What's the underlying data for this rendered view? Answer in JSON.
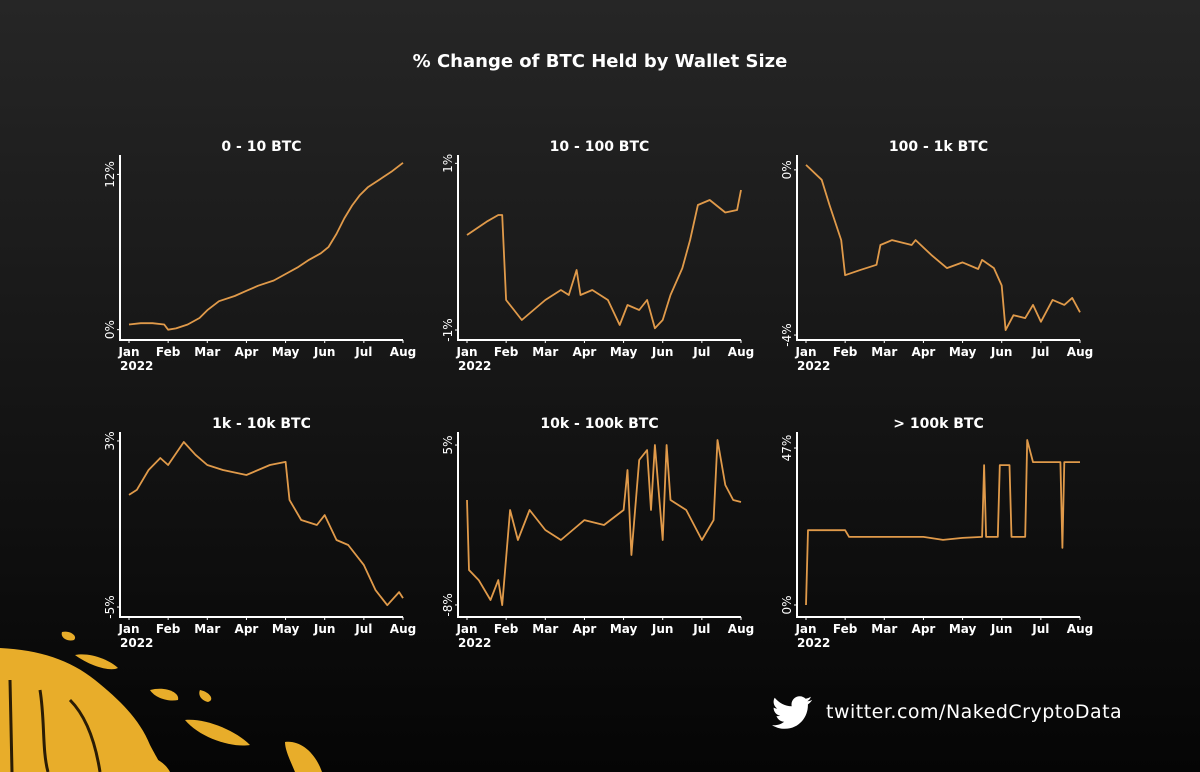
{
  "title": "% Change of BTC Held by Wallet Size",
  "footer": "twitter.com/NakedCryptoData",
  "chart_data": [
    {
      "type": "line",
      "title": "0 - 10 BTC",
      "color": "#e09a4a",
      "x": [
        0,
        0.3,
        0.6,
        0.9,
        1.0,
        1.2,
        1.5,
        1.8,
        2.0,
        2.3,
        2.7,
        3.0,
        3.3,
        3.7,
        4.0,
        4.3,
        4.6,
        4.9,
        5.1,
        5.3,
        5.5,
        5.7,
        5.9,
        6.1,
        6.4,
        6.7,
        7.0
      ],
      "values": [
        0.4,
        0.5,
        0.5,
        0.4,
        0.0,
        0.1,
        0.4,
        0.9,
        1.5,
        2.2,
        2.6,
        3.0,
        3.4,
        3.8,
        4.3,
        4.8,
        5.4,
        5.9,
        6.4,
        7.4,
        8.6,
        9.6,
        10.4,
        11.0,
        11.6,
        12.2,
        12.9
      ],
      "xlim": [
        -0.23,
        7
      ],
      "xticks": [
        {
          "value": 0,
          "label": "Jan"
        },
        {
          "value": 1,
          "label": "Feb"
        },
        {
          "value": 2,
          "label": "Mar"
        },
        {
          "value": 3,
          "label": "Apr"
        },
        {
          "value": 4,
          "label": "May"
        },
        {
          "value": 5,
          "label": "Jun"
        },
        {
          "value": 6,
          "label": "Jul"
        },
        {
          "value": 7,
          "label": "Aug"
        }
      ],
      "x_year": "2022",
      "ylim": [
        -0.8,
        13.5
      ],
      "yticks": [
        {
          "value": 0,
          "label": "0%"
        },
        {
          "value": 12,
          "label": "12%"
        }
      ]
    },
    {
      "type": "line",
      "title": "10 - 100 BTC",
      "color": "#e09a4a",
      "x": [
        0,
        0.5,
        0.8,
        0.9,
        1.0,
        1.2,
        1.4,
        2.0,
        2.4,
        2.6,
        2.8,
        2.9,
        3.2,
        3.6,
        3.9,
        4.1,
        4.4,
        4.6,
        4.8,
        5.0,
        5.2,
        5.5,
        5.7,
        5.9,
        6.2,
        6.6,
        6.9,
        7.0
      ],
      "values": [
        0.14,
        0.3,
        0.38,
        0.38,
        -0.64,
        -0.76,
        -0.88,
        -0.64,
        -0.52,
        -0.58,
        -0.28,
        -0.58,
        -0.52,
        -0.64,
        -0.94,
        -0.7,
        -0.76,
        -0.64,
        -0.98,
        -0.88,
        -0.58,
        -0.26,
        0.08,
        0.5,
        0.56,
        0.41,
        0.44,
        0.68
      ],
      "xlim": [
        -0.23,
        7
      ],
      "xticks": [
        {
          "value": 0,
          "label": "Jan"
        },
        {
          "value": 1,
          "label": "Feb"
        },
        {
          "value": 2,
          "label": "Mar"
        },
        {
          "value": 3,
          "label": "Apr"
        },
        {
          "value": 4,
          "label": "May"
        },
        {
          "value": 5,
          "label": "Jun"
        },
        {
          "value": 6,
          "label": "Jul"
        },
        {
          "value": 7,
          "label": "Aug"
        }
      ],
      "x_year": "2022",
      "ylim": [
        -1.12,
        1.1
      ],
      "yticks": [
        {
          "value": -1,
          "label": "-1%"
        },
        {
          "value": 1,
          "label": "1%"
        }
      ]
    },
    {
      "type": "line",
      "title": "100 - 1k BTC",
      "color": "#e09a4a",
      "x": [
        0,
        0.4,
        0.6,
        0.9,
        1.0,
        1.4,
        1.8,
        1.9,
        2.2,
        2.7,
        2.8,
        3.2,
        3.6,
        4.0,
        4.4,
        4.5,
        4.8,
        5.0,
        5.1,
        5.3,
        5.6,
        5.8,
        6.0,
        6.3,
        6.6,
        6.8,
        7.0
      ],
      "values": [
        0.12,
        -0.24,
        -0.85,
        -1.7,
        -2.55,
        -2.42,
        -2.3,
        -1.82,
        -1.7,
        -1.82,
        -1.7,
        -2.06,
        -2.38,
        -2.24,
        -2.4,
        -2.18,
        -2.38,
        -2.8,
        -3.88,
        -3.52,
        -3.59,
        -3.27,
        -3.68,
        -3.15,
        -3.27,
        -3.1,
        -3.45
      ],
      "xlim": [
        -0.23,
        7
      ],
      "xticks": [
        {
          "value": 0,
          "label": "Jan"
        },
        {
          "value": 1,
          "label": "Feb"
        },
        {
          "value": 2,
          "label": "Mar"
        },
        {
          "value": 3,
          "label": "Apr"
        },
        {
          "value": 4,
          "label": "May"
        },
        {
          "value": 5,
          "label": "Jun"
        },
        {
          "value": 6,
          "label": "Jul"
        },
        {
          "value": 7,
          "label": "Aug"
        }
      ],
      "x_year": "2022",
      "ylim": [
        -4.12,
        0.36
      ],
      "yticks": [
        {
          "value": -4,
          "label": "-4%"
        },
        {
          "value": 0,
          "label": "0%"
        }
      ]
    },
    {
      "type": "line",
      "title": "1k - 10k BTC",
      "color": "#e09a4a",
      "x": [
        0,
        0.2,
        0.5,
        0.8,
        1.0,
        1.4,
        1.7,
        2.0,
        2.4,
        3.0,
        3.6,
        4.0,
        4.1,
        4.4,
        4.8,
        5.0,
        5.3,
        5.6,
        6.0,
        6.3,
        6.6,
        6.9,
        7.0
      ],
      "values": [
        0.4,
        0.64,
        1.6,
        2.18,
        1.84,
        2.95,
        2.33,
        1.84,
        1.6,
        1.36,
        1.84,
        1.99,
        0.16,
        -0.81,
        -1.05,
        -0.57,
        -1.77,
        -2.01,
        -2.98,
        -4.19,
        -4.91,
        -4.28,
        -4.57
      ],
      "xlim": [
        -0.23,
        7
      ],
      "xticks": [
        {
          "value": 0,
          "label": "Jan"
        },
        {
          "value": 1,
          "label": "Feb"
        },
        {
          "value": 2,
          "label": "Mar"
        },
        {
          "value": 3,
          "label": "Apr"
        },
        {
          "value": 4,
          "label": "May"
        },
        {
          "value": 5,
          "label": "Jun"
        },
        {
          "value": 6,
          "label": "Jul"
        },
        {
          "value": 7,
          "label": "Aug"
        }
      ],
      "x_year": "2022",
      "ylim": [
        -5.48,
        3.43
      ],
      "yticks": [
        {
          "value": -5,
          "label": "-5%"
        },
        {
          "value": 3,
          "label": "3%"
        }
      ]
    },
    {
      "type": "line",
      "title": "10k - 100k BTC",
      "color": "#e09a4a",
      "x": [
        0,
        0.05,
        0.3,
        0.6,
        0.8,
        0.9,
        1.1,
        1.3,
        1.6,
        2.0,
        2.4,
        2.7,
        3.0,
        3.5,
        4.0,
        4.1,
        4.2,
        4.4,
        4.6,
        4.7,
        4.8,
        5.0,
        5.1,
        5.2,
        5.6,
        6.0,
        6.3,
        6.4,
        6.6,
        6.8,
        7.0
      ],
      "values": [
        0.53,
        -5.16,
        -5.98,
        -7.6,
        -5.98,
        -8.01,
        -0.28,
        -2.72,
        -0.28,
        -1.91,
        -2.72,
        -1.91,
        -1.1,
        -1.5,
        -0.28,
        2.97,
        -3.94,
        3.78,
        4.59,
        -0.28,
        5.0,
        -2.72,
        5.0,
        0.53,
        -0.28,
        -2.72,
        -1.1,
        5.41,
        1.75,
        0.53,
        0.37
      ],
      "xlim": [
        -0.23,
        7
      ],
      "xticks": [
        {
          "value": 0,
          "label": "Jan"
        },
        {
          "value": 1,
          "label": "Feb"
        },
        {
          "value": 2,
          "label": "Mar"
        },
        {
          "value": 3,
          "label": "Apr"
        },
        {
          "value": 4,
          "label": "May"
        },
        {
          "value": 5,
          "label": "Jun"
        },
        {
          "value": 6,
          "label": "Jul"
        },
        {
          "value": 7,
          "label": "Aug"
        }
      ],
      "x_year": "2022",
      "ylim": [
        -8.98,
        6.06
      ],
      "yticks": [
        {
          "value": -8,
          "label": "-8%"
        },
        {
          "value": 5,
          "label": "5%"
        }
      ]
    },
    {
      "type": "line",
      "title": "> 100k  BTC",
      "color": "#e09a4a",
      "x": [
        0,
        0.05,
        1.0,
        1.1,
        3.0,
        3.5,
        4.0,
        4.5,
        4.55,
        4.6,
        4.9,
        4.95,
        5.2,
        5.25,
        5.6,
        5.65,
        5.8,
        6.5,
        6.55,
        6.6,
        7.0
      ],
      "values": [
        0,
        22.4,
        22.4,
        20.4,
        20.4,
        19.5,
        20.1,
        20.4,
        41.9,
        20.4,
        20.4,
        41.9,
        41.9,
        20.4,
        20.4,
        49.4,
        42.8,
        42.8,
        17.1,
        42.8,
        42.8
      ],
      "xlim": [
        -0.23,
        7
      ],
      "xticks": [
        {
          "value": 0,
          "label": "Jan"
        },
        {
          "value": 1,
          "label": "Feb"
        },
        {
          "value": 2,
          "label": "Mar"
        },
        {
          "value": 3,
          "label": "Apr"
        },
        {
          "value": 4,
          "label": "May"
        },
        {
          "value": 5,
          "label": "Jun"
        },
        {
          "value": 6,
          "label": "Jul"
        },
        {
          "value": 7,
          "label": "Aug"
        }
      ],
      "x_year": "2022",
      "ylim": [
        -3.6,
        51.8
      ],
      "yticks": [
        {
          "value": 0,
          "label": "0%"
        },
        {
          "value": 47,
          "label": "47%"
        }
      ]
    }
  ]
}
